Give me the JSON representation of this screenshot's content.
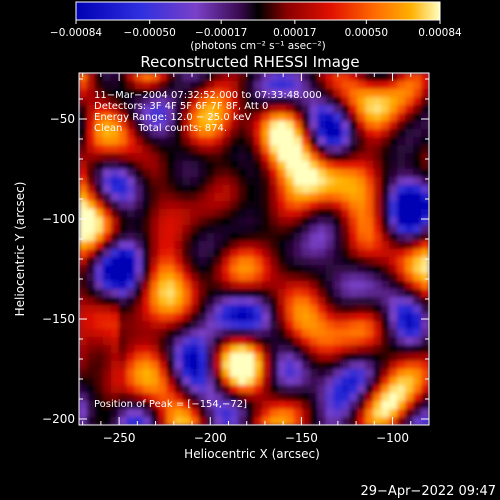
{
  "chart_data": {
    "type": "heatmap",
    "title": "Reconstructed RHESSI Image",
    "xlabel": "Heliocentric X (arcsec)",
    "ylabel": "Heliocentric Y (arcsec)",
    "xlim": [
      -272,
      -80
    ],
    "ylim": [
      -203,
      -27
    ],
    "x_ticks": [
      -250,
      -200,
      -150,
      -100
    ],
    "x_tick_labels": [
      "−250",
      "−200",
      "−150",
      "−100"
    ],
    "y_ticks": [
      -50,
      -100,
      -150,
      -200
    ],
    "y_tick_labels": [
      "−50",
      "−100",
      "−150",
      "−200"
    ],
    "colorbar": {
      "range": [
        -0.00084,
        0.00084
      ],
      "ticks": [
        -0.00084,
        -0.0005,
        -0.00017,
        0.00017,
        0.0005,
        0.00084
      ],
      "tick_labels": [
        "−0.00084",
        "−0.00050",
        "−0.00017",
        "0.00017",
        "0.00050",
        "0.00084"
      ],
      "unit_label": "(photons cm⁻² s⁻¹ asec⁻²)"
    },
    "annotations": [
      "11−Mar−2004 07:32:52.000 to 07:33:48.000",
      "Detectors: 3F 4F 5F 6F 7F 8F, Att 0",
      "Energy Range: 12.0 − 25.0 keV",
      "Clean     Total counts: 874."
    ],
    "peak_label": "Position of Peak = [−154,−72]",
    "peak": [
      -154,
      -72
    ],
    "colormap": [
      "#0000b4",
      "#2a2ad8",
      "#7a40c8",
      "#3a0a50",
      "#000000",
      "#8a0000",
      "#e01000",
      "#ff6a00",
      "#ffb000",
      "#ffffc0"
    ]
  },
  "footer_timestamp": "29−Apr−2022 09:47"
}
